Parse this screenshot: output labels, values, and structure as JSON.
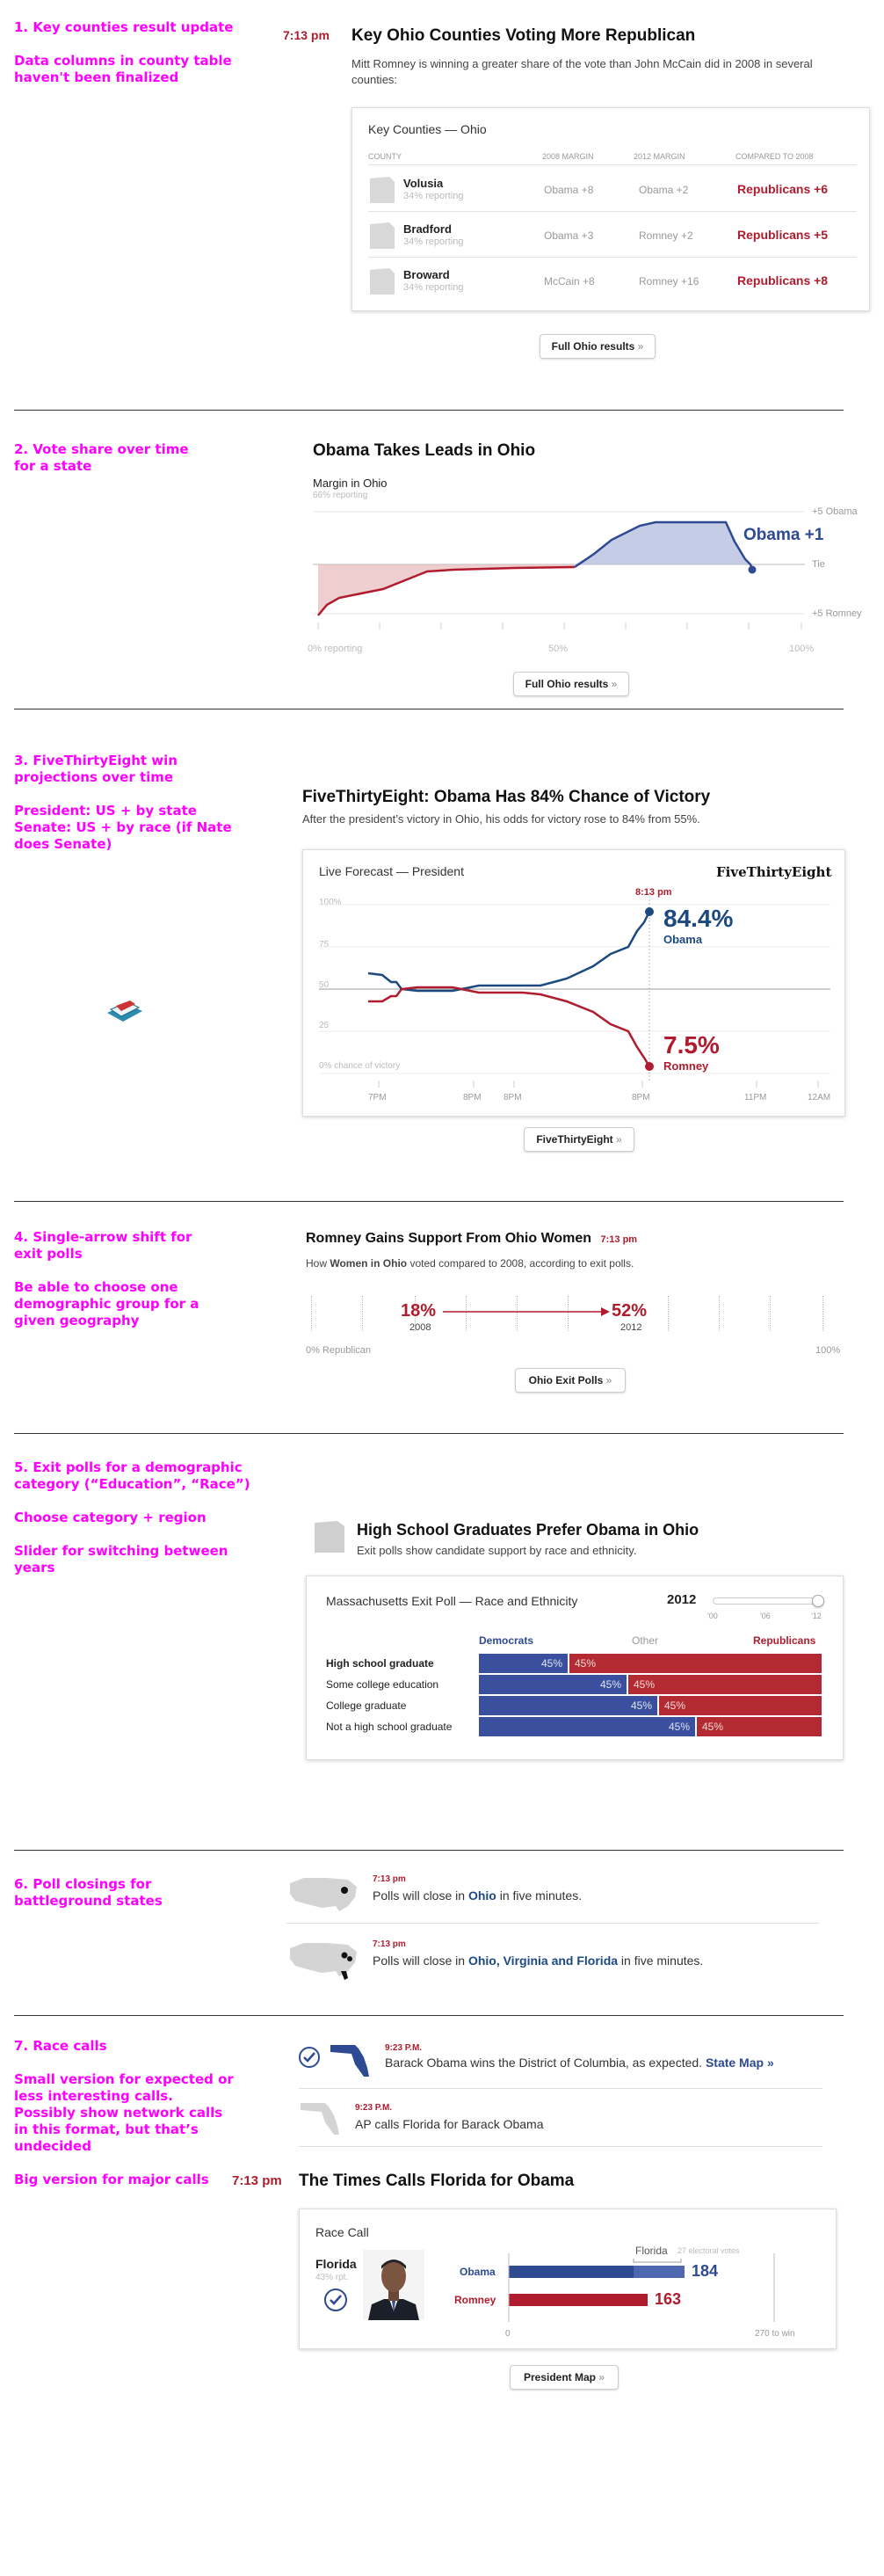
{
  "notes": {
    "n1": [
      "1. Key counties result update",
      "Data columns in county table haven't been finalized"
    ],
    "n2": [
      "2. Vote share over time for a state"
    ],
    "n3": [
      "3. FiveThirtyEight win projections over time",
      "President: US + by state Senate: US + by race (if Nate does Senate)"
    ],
    "n4": [
      "4. Single-arrow shift for exit polls",
      "Be able to choose one demographic group for a given geography"
    ],
    "n5": [
      "5. Exit polls for a demographic category (“Education”, “Race”)",
      "Choose category + region",
      "Slider for switching between years"
    ],
    "n6": [
      "6. Poll closings for battleground states"
    ],
    "n7": [
      "7. Race calls",
      "Small version for expected or less interesting calls. Possibly show network calls in this format, but that’s undecided",
      "Big version for major calls"
    ]
  },
  "s1": {
    "time": "7:13 pm",
    "title": "Key Ohio Counties Voting More Republican",
    "sub": "Mitt Romney is winning a greater share of the vote than John McCain did in 2008 in several counties:",
    "card_title": "Key Counties — Ohio",
    "headers": [
      "COUNTY",
      "2008 MARGIN",
      "2012 MARGIN",
      "COMPARED TO 2008"
    ],
    "rows": [
      {
        "county": "Volusia",
        "reporting": "34% reporting",
        "m2008": "Obama +8",
        "m2012": "Obama +2",
        "compared": "Republicans +6"
      },
      {
        "county": "Bradford",
        "reporting": "34% reporting",
        "m2008": "Obama +3",
        "m2012": "Romney +2",
        "compared": "Republicans +5"
      },
      {
        "county": "Broward",
        "reporting": "34% reporting",
        "m2008": "McCain +8",
        "m2012": "Romney +16",
        "compared": "Republicans +8"
      }
    ],
    "button": "Full Ohio results",
    "arrow": "»"
  },
  "s2": {
    "title": "Obama Takes Leads in Ohio",
    "chart_title": "Margin in Ohio",
    "chart_sub": "66% reporting",
    "label_top": "+5 Obama",
    "label_mid": "Tie",
    "label_bot": "+5 Romney",
    "x_start": "0% reporting",
    "x_mid": "50%",
    "x_end": "100%",
    "end_label": "Obama +1",
    "button": "Full Ohio results"
  },
  "s3": {
    "title": "FiveThirtyEight: Obama Has 84% Chance of Victory",
    "sub": "After the president’s victory in Ohio, his odds for victory rose to 84% from 55%.",
    "card_title": "Live Forecast — President",
    "brand": "FiveThirtyEight",
    "y_labels": [
      "100%",
      "75",
      "50",
      "25",
      "0% chance of victory"
    ],
    "x_labels": [
      "7PM",
      "8PM",
      "8PM",
      "8PM",
      "11PM",
      "12AM"
    ],
    "marker_time": "8:13 pm",
    "obama_pct": "84.4%",
    "obama_name": "Obama",
    "romney_pct": "7.5%",
    "romney_name": "Romney",
    "button": "FiveThirtyEight"
  },
  "s4": {
    "title": "Romney Gains Support From Ohio Women",
    "time": "7:13 pm",
    "sub_pre": "How ",
    "sub_bold": "Women in Ohio",
    "sub_post": " voted compared to 2008, according to exit polls.",
    "from_val": "18%",
    "from_year": "2008",
    "to_val": "52%",
    "to_year": "2012",
    "x_left": "0% Republican",
    "x_right": "100%",
    "button": "Ohio Exit Polls"
  },
  "s5": {
    "title": "High School Graduates Prefer Obama in Ohio",
    "sub": "Exit polls show candidate support by race and ethnicity.",
    "card_title": "Massachusetts Exit Poll — Race and Ethnicity",
    "year": "2012",
    "slider_labels": [
      "'00",
      "'06",
      "'12"
    ],
    "col_dem": "Democrats",
    "col_other": "Other",
    "col_rep": "Republicans",
    "rows": [
      {
        "label": "High school graduate",
        "dem": "45%",
        "rep": "45%",
        "dem_share": 0.26,
        "bold": true
      },
      {
        "label": "Some college education",
        "dem": "45%",
        "rep": "45%",
        "dem_share": 0.43,
        "bold": false
      },
      {
        "label": "College graduate",
        "dem": "45%",
        "rep": "45%",
        "dem_share": 0.52,
        "bold": false
      },
      {
        "label": "Not a high school graduate",
        "dem": "45%",
        "rep": "45%",
        "dem_share": 0.63,
        "bold": false
      }
    ]
  },
  "s6": {
    "items": [
      {
        "time": "7:13 pm",
        "pre": "Polls will close in ",
        "bold": "Ohio",
        "post": " in five minutes."
      },
      {
        "time": "7:13 pm",
        "pre": "Polls will close in ",
        "bold": "Ohio, Virginia and Florida",
        "post": " in five minutes."
      }
    ]
  },
  "s7": {
    "small1": {
      "time": "9:23 P.M.",
      "text": "Barack Obama wins the District of Columbia, as expected.",
      "link": "State Map »"
    },
    "small2": {
      "time": "9:23 P.M.",
      "text": "AP calls Florida for Barack Obama"
    },
    "time": "7:13 pm",
    "title": "The Times Calls Florida for Obama",
    "card_title": "Race Call",
    "state": "Florida",
    "state_sub": "43% rpt.",
    "bar_state": "Florida",
    "bar_state_sub": "27 electoral votes",
    "obama": "Obama",
    "obama_ev": "184",
    "romney": "Romney",
    "romney_ev": "163",
    "axis_zero": "0",
    "axis_win": "270 to win",
    "button": "President Map"
  }
}
